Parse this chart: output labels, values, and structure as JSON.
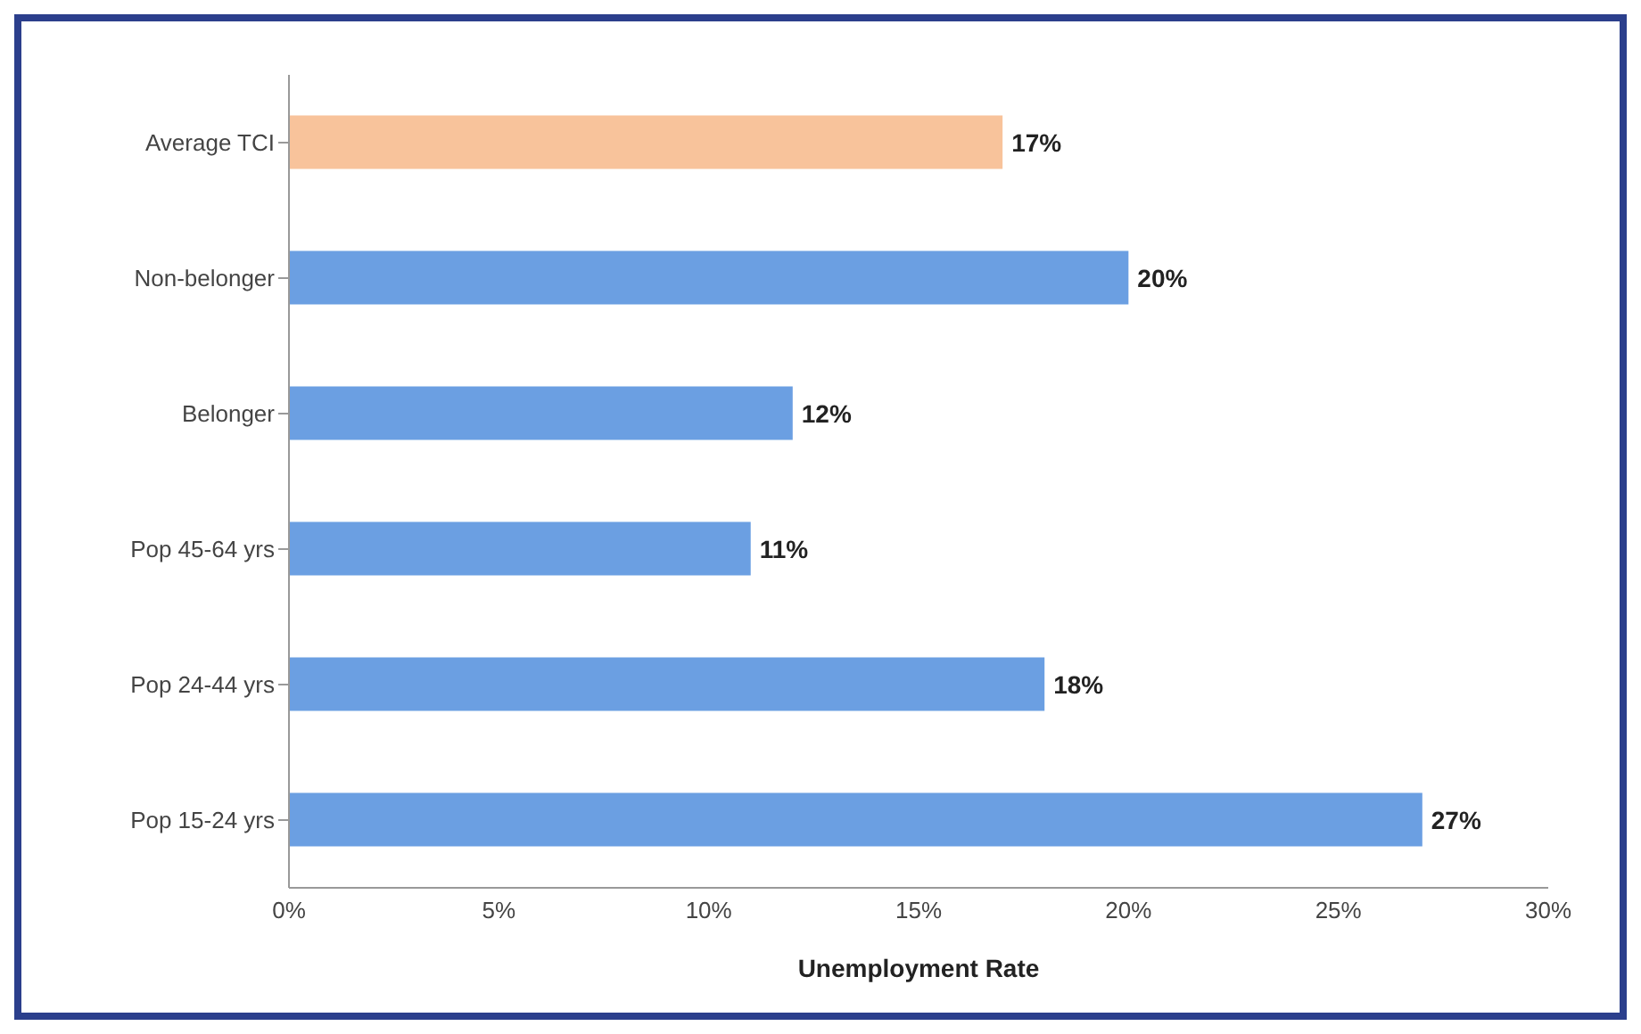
{
  "chart_data": {
    "type": "bar",
    "orientation": "horizontal",
    "xlabel": "Unemployment Rate",
    "categories": [
      "Average TCI",
      "Non-belonger",
      "Belonger",
      "Pop 45-64 yrs",
      "Pop 24-44 yrs",
      "Pop 15-24 yrs"
    ],
    "values": [
      17,
      20,
      12,
      11,
      18,
      27
    ],
    "colors": [
      "#f8c39b",
      "#6b9fe2",
      "#6b9fe2",
      "#6b9fe2",
      "#6b9fe2",
      "#6b9fe2"
    ],
    "value_labels": [
      "17%",
      "20%",
      "12%",
      "11%",
      "18%",
      "27%"
    ],
    "xlim": [
      0,
      30
    ],
    "xticks": [
      {
        "value": 0,
        "label": "0%"
      },
      {
        "value": 5,
        "label": "5%"
      },
      {
        "value": 10,
        "label": "10%"
      },
      {
        "value": 15,
        "label": "15%"
      },
      {
        "value": 20,
        "label": "20%"
      },
      {
        "value": 25,
        "label": "25%"
      },
      {
        "value": 30,
        "label": "30%"
      }
    ]
  }
}
